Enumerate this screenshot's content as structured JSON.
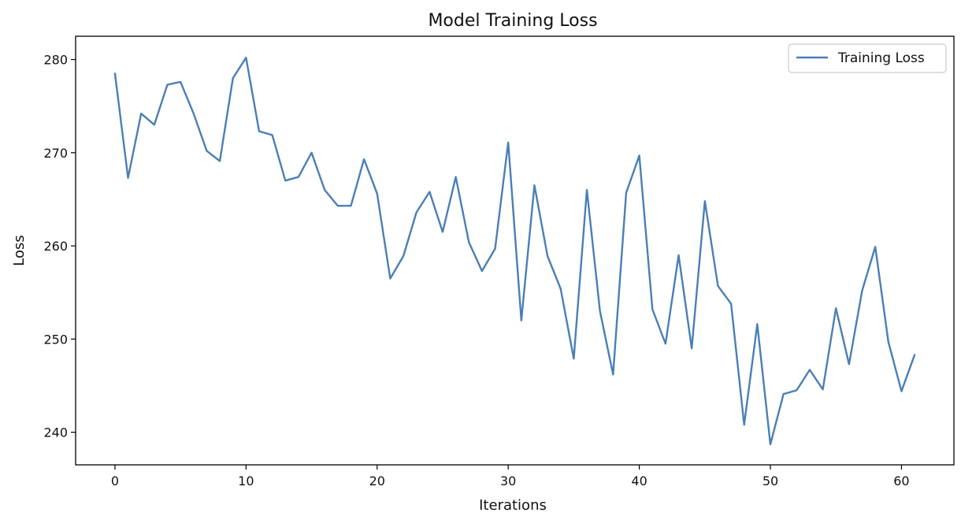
{
  "chart_data": {
    "type": "line",
    "title": "Model Training Loss",
    "xlabel": "Iterations",
    "ylabel": "Loss",
    "xlim": [
      -3,
      64
    ],
    "ylim": [
      236.5,
      282.5
    ],
    "x_ticks": [
      0,
      10,
      20,
      30,
      40,
      50,
      60
    ],
    "y_ticks": [
      240,
      250,
      260,
      270,
      280
    ],
    "grid": false,
    "legend_position": "top-right",
    "series": [
      {
        "name": "Training Loss",
        "color": "#4a7fb5",
        "x": [
          0,
          1,
          2,
          3,
          4,
          5,
          6,
          7,
          8,
          9,
          10,
          11,
          12,
          13,
          14,
          15,
          16,
          17,
          18,
          19,
          20,
          21,
          22,
          23,
          24,
          25,
          26,
          27,
          28,
          29,
          30,
          31,
          32,
          33,
          34,
          35,
          36,
          37,
          38,
          39,
          40,
          41,
          42,
          43,
          44,
          45,
          46,
          47,
          48,
          49,
          50,
          51,
          52,
          53,
          54,
          55,
          56,
          57,
          58,
          59,
          60,
          61
        ],
        "values": [
          278.5,
          267.3,
          274.2,
          273.0,
          277.3,
          277.6,
          274.2,
          270.2,
          269.1,
          278.0,
          280.2,
          272.3,
          271.9,
          267.0,
          267.4,
          270.0,
          266.0,
          264.3,
          264.3,
          269.3,
          265.6,
          256.5,
          258.9,
          263.6,
          265.8,
          261.5,
          267.4,
          260.4,
          257.3,
          259.7,
          271.1,
          252.0,
          266.5,
          258.9,
          255.4,
          247.9,
          266.0,
          253.0,
          246.2,
          265.7,
          269.7,
          253.2,
          249.5,
          259.0,
          249.0,
          264.8,
          255.7,
          253.8,
          240.8,
          251.6,
          238.7,
          244.1,
          244.5,
          246.7,
          244.6,
          253.3,
          247.3,
          255.2,
          259.9,
          249.7,
          244.4,
          248.3
        ]
      }
    ]
  }
}
